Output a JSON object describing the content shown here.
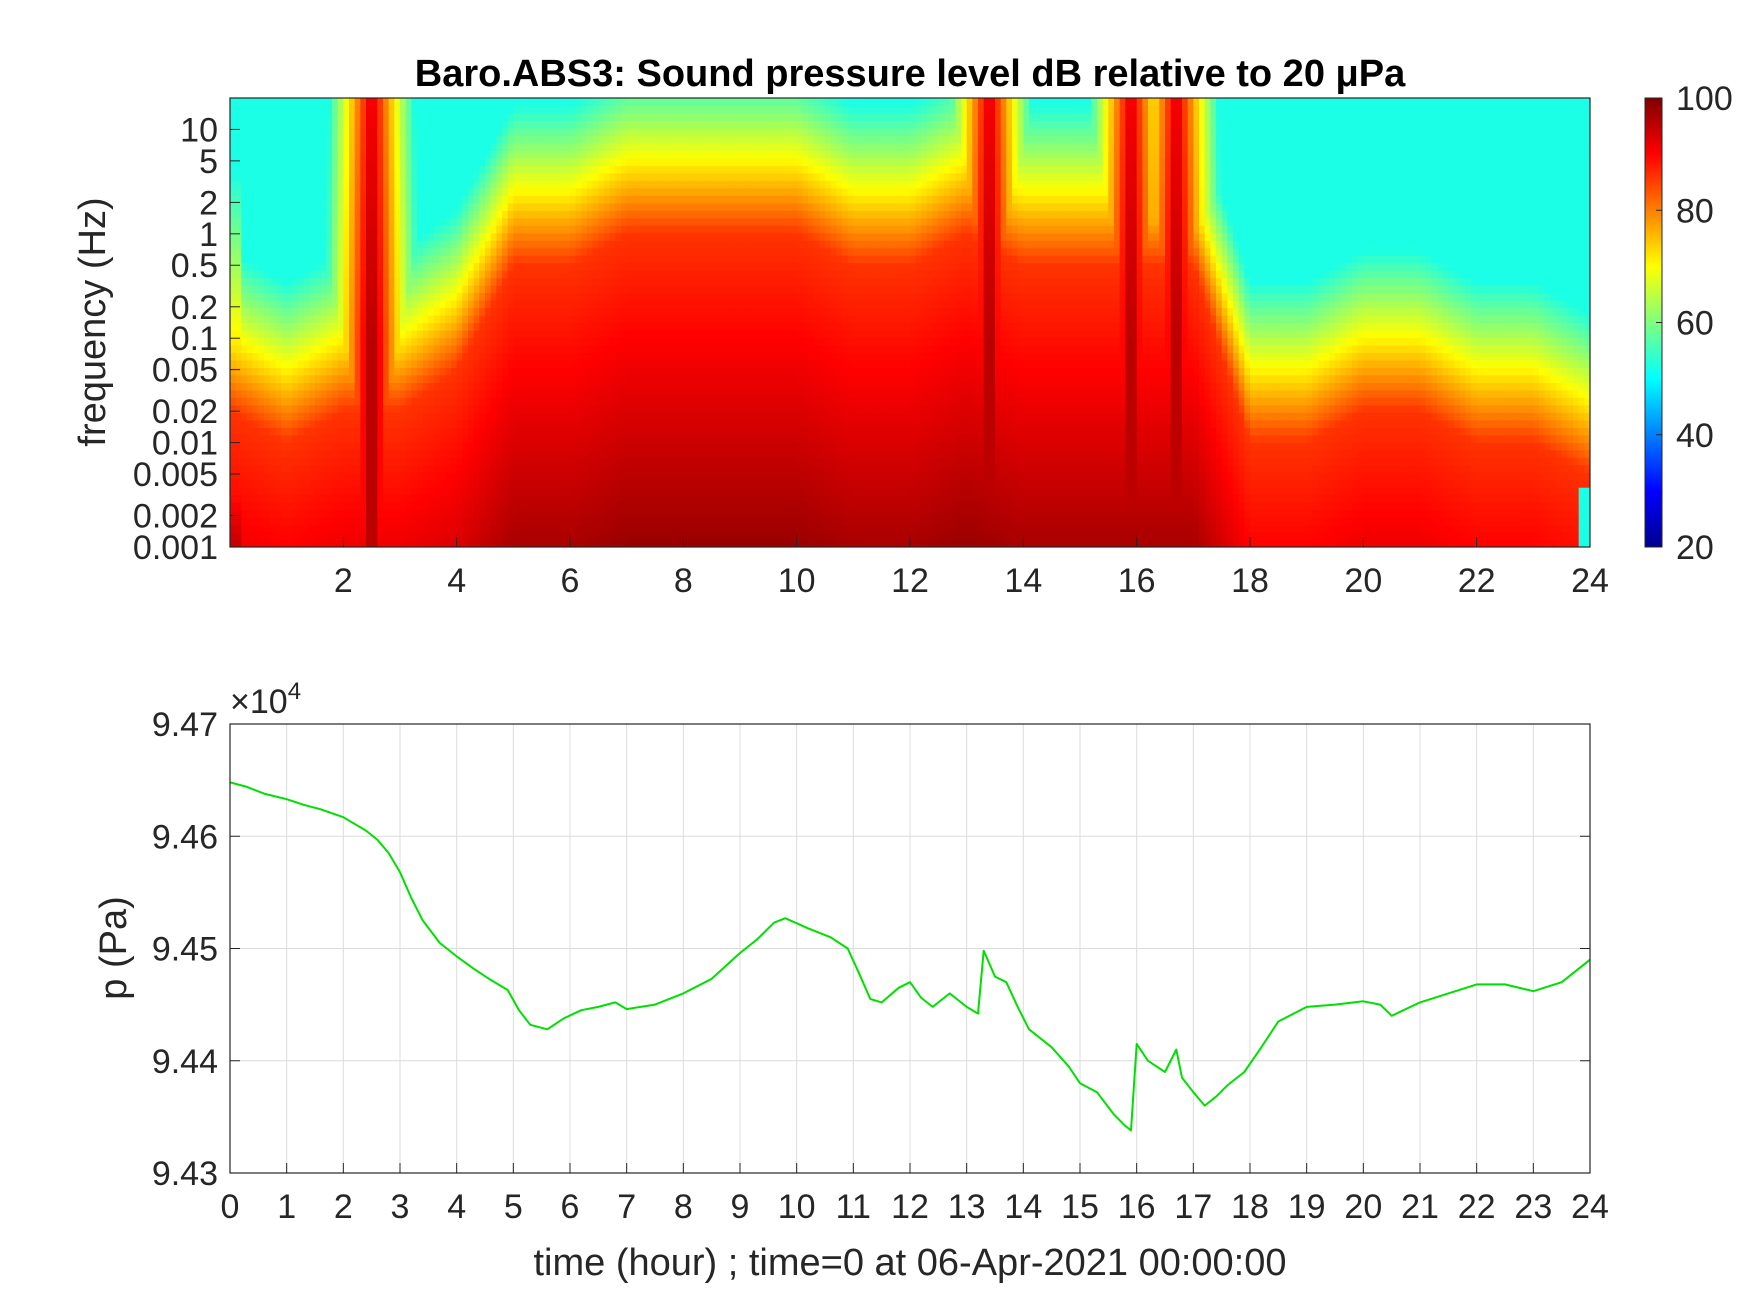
{
  "chart_data": [
    {
      "type": "heatmap",
      "title": "Baro.ABS3: Sound pressure level dB relative to 20 μPa",
      "xlabel": "",
      "ylabel": "frequency (Hz)",
      "xlim": [
        0,
        24
      ],
      "ylim": [
        0.001,
        20
      ],
      "yscale": "log",
      "x_ticks": [
        2,
        4,
        6,
        8,
        10,
        12,
        14,
        16,
        18,
        20,
        22,
        24
      ],
      "y_ticks": [
        0.001,
        0.002,
        0.005,
        0.01,
        0.02,
        0.05,
        0.1,
        0.2,
        0.5,
        1,
        2,
        5,
        10
      ],
      "y_tick_labels": [
        "0.001",
        "0.002",
        "0.005",
        "0.01",
        "0.02",
        "0.05",
        "0.1",
        "0.2",
        "0.5",
        "1",
        "2",
        "5",
        "10"
      ],
      "colorbar": {
        "range": [
          20,
          100
        ],
        "ticks": [
          20,
          40,
          60,
          80,
          100
        ],
        "colormap": "jet"
      },
      "level_profile_hours": [
        0,
        1,
        2,
        3,
        4,
        5,
        6,
        7,
        8,
        9,
        10,
        11,
        12,
        13,
        14,
        15,
        16,
        17,
        18,
        19,
        20,
        21,
        22,
        23,
        24
      ],
      "peak_level_band_top_hz": [
        0.02,
        0.01,
        0.02,
        0.02,
        0.05,
        0.5,
        0.5,
        1,
        1,
        1,
        1,
        0.5,
        0.5,
        1,
        0.5,
        0.5,
        0.5,
        0.5,
        0.01,
        0.01,
        0.02,
        0.02,
        0.01,
        0.01,
        0.005
      ],
      "transient_peaks_hour": [
        2.5,
        13.4,
        15.9,
        16.7
      ],
      "grid": false
    },
    {
      "type": "line",
      "title": "",
      "xlabel": "time (hour) ; time=0 at 06-Apr-2021 00:00:00",
      "ylabel": "p (Pa)",
      "y_exponent_label": "×10",
      "y_exponent_power": "4",
      "xlim": [
        0,
        24
      ],
      "ylim": [
        9.43,
        9.47
      ],
      "x_ticks": [
        0,
        1,
        2,
        3,
        4,
        5,
        6,
        7,
        8,
        9,
        10,
        11,
        12,
        13,
        14,
        15,
        16,
        17,
        18,
        19,
        20,
        21,
        22,
        23,
        24
      ],
      "y_ticks": [
        9.43,
        9.44,
        9.45,
        9.46,
        9.47
      ],
      "grid": true,
      "series": [
        {
          "color": "#00e000",
          "x": [
            0,
            0.3,
            0.6,
            1.0,
            1.3,
            1.6,
            2.0,
            2.4,
            2.6,
            2.8,
            3.0,
            3.2,
            3.4,
            3.7,
            4.0,
            4.3,
            4.6,
            4.9,
            5.1,
            5.3,
            5.6,
            5.9,
            6.2,
            6.5,
            6.8,
            7.0,
            7.5,
            8.0,
            8.5,
            9.0,
            9.3,
            9.6,
            9.8,
            10.2,
            10.6,
            10.9,
            11.1,
            11.3,
            11.5,
            11.8,
            12.0,
            12.2,
            12.4,
            12.7,
            13.0,
            13.2,
            13.3,
            13.5,
            13.7,
            13.9,
            14.1,
            14.5,
            14.8,
            15.0,
            15.3,
            15.6,
            15.8,
            15.9,
            16.0,
            16.2,
            16.5,
            16.7,
            16.8,
            17.0,
            17.2,
            17.4,
            17.6,
            17.9,
            18.2,
            18.5,
            19.0,
            19.5,
            20.0,
            20.3,
            20.5,
            21.0,
            21.5,
            22.0,
            22.5,
            23.0,
            23.5,
            23.8,
            24.0
          ],
          "y": [
            9.4648,
            9.4644,
            9.4638,
            9.4633,
            9.4628,
            9.4624,
            9.4617,
            9.4605,
            9.4597,
            9.4585,
            9.4568,
            9.4545,
            9.4525,
            9.4505,
            9.4493,
            9.4482,
            9.4472,
            9.4463,
            9.4445,
            9.4432,
            9.4428,
            9.4438,
            9.4445,
            9.4448,
            9.4452,
            9.4446,
            9.445,
            9.446,
            9.4473,
            9.4496,
            9.4508,
            9.4523,
            9.4527,
            9.4518,
            9.451,
            9.45,
            9.4478,
            9.4455,
            9.4452,
            9.4465,
            9.447,
            9.4456,
            9.4448,
            9.446,
            9.4448,
            9.4442,
            9.4498,
            9.4475,
            9.447,
            9.4448,
            9.4428,
            9.4412,
            9.4395,
            9.438,
            9.4372,
            9.4352,
            9.4342,
            9.4338,
            9.4415,
            9.44,
            9.439,
            9.441,
            9.4385,
            9.4372,
            9.436,
            9.4368,
            9.4378,
            9.439,
            9.4412,
            9.4435,
            9.4448,
            9.445,
            9.4453,
            9.445,
            9.444,
            9.4452,
            9.446,
            9.4468,
            9.4468,
            9.4462,
            9.447,
            9.4482,
            9.449
          ]
        }
      ]
    }
  ]
}
